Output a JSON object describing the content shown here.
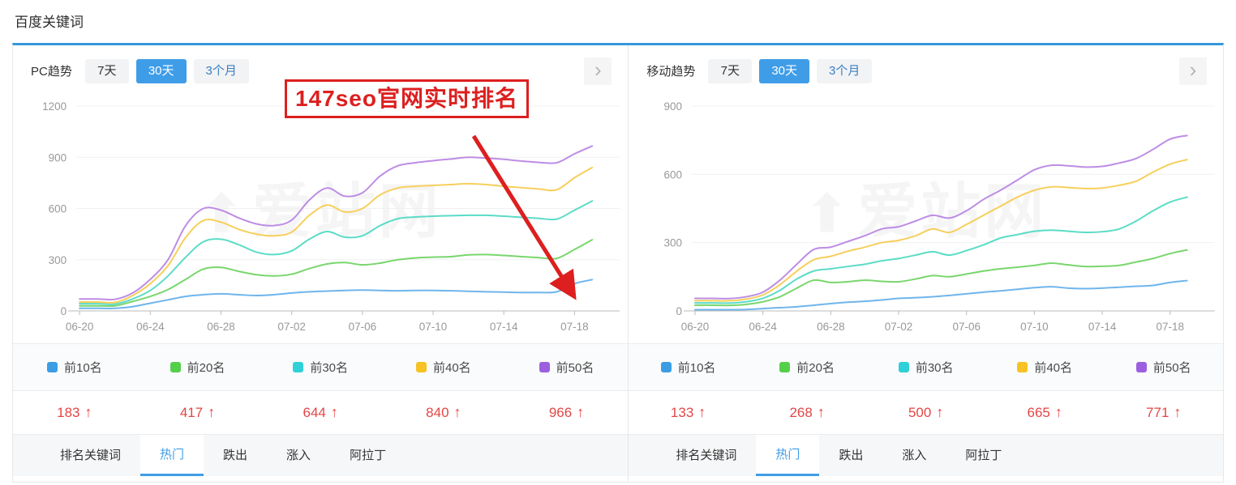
{
  "page": {
    "title": "百度关键词"
  },
  "shared": {
    "trend_tabs": [
      "7天",
      "30天",
      "3个月"
    ],
    "active_trend_tab": "30天",
    "bottom_tabs": [
      "排名关键词",
      "热门",
      "跌出",
      "涨入",
      "阿拉丁"
    ],
    "active_bottom_tab": "热门",
    "up_arrow": "↑",
    "chevron": "›",
    "watermark_icon": "⬆",
    "watermark": "爱站网"
  },
  "panels": [
    {
      "label": "PC趋势",
      "legend": [
        "前10名",
        "前20名",
        "前30名",
        "前40名",
        "前50名"
      ],
      "values": [
        "183",
        "417",
        "644",
        "840",
        "966"
      ],
      "annotation": "147seo官网实时排名"
    },
    {
      "label": "移动趋势",
      "legend": [
        "前10名",
        "前20名",
        "前30名",
        "前40名",
        "前50名"
      ],
      "values": [
        "133",
        "268",
        "500",
        "665",
        "771"
      ]
    }
  ],
  "colors": {
    "accent_blue": "#3F9DE8",
    "header_line_blue": "#3598DB",
    "value_red": "#E34646",
    "annotation_red": "#DD1F1F",
    "legend_swatches": [
      "#3B9EE5",
      "#54CF4A",
      "#2FD0D8",
      "#F6C224",
      "#9C5FE0"
    ]
  },
  "chart_data": [
    {
      "id": "pc-trend",
      "type": "line",
      "title": "PC趋势 30天",
      "x_labels": [
        "06-20",
        "06-24",
        "06-28",
        "07-02",
        "07-06",
        "07-10",
        "07-14",
        "07-18"
      ],
      "x_label_indices": [
        0,
        4,
        8,
        12,
        16,
        20,
        24,
        28
      ],
      "n_points": 30,
      "ylim": [
        0,
        1200
      ],
      "yticks": [
        0,
        300,
        600,
        900,
        1200
      ],
      "grid": true,
      "legend_position": "bottom",
      "series": [
        {
          "name": "前10名",
          "color": "#6FB5EC",
          "values": [
            15,
            15,
            15,
            25,
            45,
            65,
            85,
            95,
            100,
            95,
            90,
            95,
            105,
            112,
            116,
            120,
            122,
            120,
            118,
            120,
            120,
            118,
            115,
            112,
            110,
            108,
            108,
            112,
            160,
            183
          ]
        },
        {
          "name": "前20名",
          "color": "#79D66D",
          "values": [
            30,
            30,
            30,
            55,
            85,
            125,
            185,
            245,
            255,
            232,
            212,
            205,
            215,
            248,
            275,
            283,
            270,
            280,
            300,
            310,
            315,
            318,
            328,
            330,
            325,
            318,
            312,
            308,
            360,
            417
          ]
        },
        {
          "name": "前30名",
          "color": "#5BDCC6",
          "values": [
            42,
            42,
            40,
            70,
            120,
            205,
            315,
            405,
            420,
            388,
            345,
            330,
            352,
            420,
            465,
            432,
            440,
            500,
            540,
            550,
            555,
            558,
            560,
            560,
            555,
            548,
            542,
            538,
            590,
            644
          ]
        },
        {
          "name": "前40名",
          "color": "#F6CF5C",
          "values": [
            52,
            52,
            50,
            90,
            160,
            265,
            430,
            530,
            520,
            478,
            450,
            440,
            462,
            560,
            620,
            580,
            600,
            680,
            720,
            730,
            735,
            740,
            745,
            740,
            730,
            722,
            714,
            710,
            780,
            840
          ]
        },
        {
          "name": "前50名",
          "color": "#BD8DE4",
          "values": [
            70,
            70,
            68,
            105,
            185,
            300,
            500,
            600,
            590,
            545,
            510,
            500,
            532,
            650,
            720,
            672,
            692,
            790,
            850,
            868,
            880,
            890,
            900,
            895,
            888,
            878,
            870,
            868,
            920,
            966
          ]
        }
      ]
    },
    {
      "id": "mobile-trend",
      "type": "line",
      "title": "移动趋势 30天",
      "x_labels": [
        "06-20",
        "06-24",
        "06-28",
        "07-02",
        "07-06",
        "07-10",
        "07-14",
        "07-18"
      ],
      "x_label_indices": [
        0,
        4,
        8,
        12,
        16,
        20,
        24,
        28
      ],
      "n_points": 30,
      "ylim": [
        0,
        900
      ],
      "yticks": [
        0,
        300,
        600,
        900
      ],
      "grid": true,
      "legend_position": "bottom",
      "series": [
        {
          "name": "前10名",
          "color": "#6FB5EC",
          "values": [
            5,
            5,
            5,
            6,
            10,
            14,
            18,
            25,
            32,
            38,
            42,
            48,
            55,
            58,
            62,
            68,
            75,
            82,
            88,
            95,
            102,
            106,
            100,
            98,
            100,
            104,
            108,
            112,
            125,
            133
          ]
        },
        {
          "name": "前20名",
          "color": "#79D66D",
          "values": [
            25,
            25,
            24,
            28,
            40,
            62,
            100,
            135,
            125,
            128,
            135,
            130,
            128,
            140,
            155,
            150,
            162,
            175,
            185,
            192,
            200,
            210,
            202,
            195,
            196,
            200,
            215,
            230,
            252,
            268
          ]
        },
        {
          "name": "前30名",
          "color": "#5BDCC6",
          "values": [
            35,
            35,
            34,
            40,
            55,
            90,
            140,
            175,
            185,
            195,
            205,
            220,
            230,
            245,
            260,
            245,
            265,
            290,
            320,
            335,
            350,
            355,
            350,
            345,
            348,
            360,
            395,
            440,
            478,
            500
          ]
        },
        {
          "name": "前40名",
          "color": "#F6CF5C",
          "values": [
            45,
            45,
            44,
            52,
            70,
            115,
            175,
            225,
            240,
            262,
            280,
            300,
            310,
            330,
            360,
            345,
            380,
            420,
            460,
            500,
            530,
            545,
            542,
            538,
            540,
            552,
            570,
            610,
            645,
            665
          ]
        },
        {
          "name": "前50名",
          "color": "#BD8DE4",
          "values": [
            55,
            55,
            54,
            62,
            82,
            135,
            205,
            270,
            280,
            305,
            330,
            360,
            370,
            395,
            420,
            408,
            440,
            490,
            530,
            575,
            620,
            640,
            638,
            632,
            635,
            650,
            670,
            710,
            755,
            771
          ]
        }
      ]
    }
  ]
}
